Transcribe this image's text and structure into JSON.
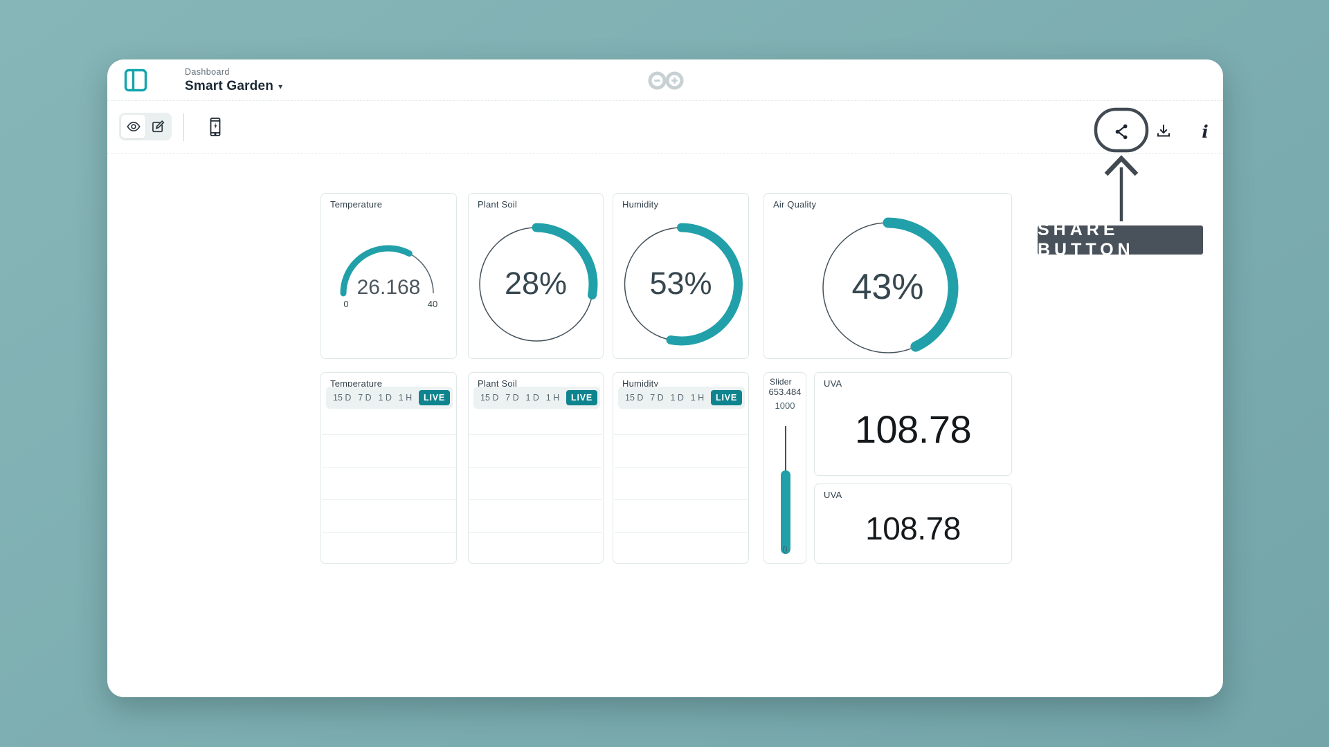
{
  "header": {
    "breadcrumb": "Dashboard",
    "title": "Smart Garden"
  },
  "annotation": {
    "label": "SHARE BUTTON"
  },
  "colors": {
    "page_background": "#7fb0b3",
    "accent_teal": "#22a0a9",
    "live_badge_teal": "#0e848e",
    "annotation_slate": "#49525a",
    "arduino_logo_gray": "#c7d0d2"
  },
  "icons": {
    "sidebar_toggle": "layout-sidebar-icon",
    "view_mode": "eye-icon",
    "edit_mode": "pencil-square-icon",
    "mobile_preview": "mobile-phone-bolt-icon",
    "share": "share-nodes-icon",
    "download": "download-tray-icon",
    "info": "italic-i-info-icon",
    "title_caret": "chevron-down-icon",
    "logo": "arduino-infinity-logo"
  },
  "widgets": {
    "temperature_gauge": {
      "title": "Temperature",
      "value": "26.168",
      "min": "0",
      "max": "40",
      "percent": 65.4
    },
    "plant_soil_ring": {
      "title": "Plant Soil",
      "value": "28%",
      "percent": 28
    },
    "humidity_ring": {
      "title": "Humidity",
      "value": "53%",
      "percent": 53
    },
    "air_quality_ring": {
      "title": "Air Quality",
      "value": "43%",
      "percent": 43
    },
    "charts": [
      {
        "title": "Temperature"
      },
      {
        "title": "Plant Soil"
      },
      {
        "title": "Humidity"
      }
    ],
    "chart_ranges": [
      "15 D",
      "7 D",
      "1 D",
      "1 H"
    ],
    "live_label": "LIVE",
    "slider": {
      "title": "Slider",
      "value": "653.484",
      "max": "1000",
      "min": "0",
      "percent": 65.3
    },
    "value_widgets": [
      {
        "title": "UVA",
        "value": "108.78"
      },
      {
        "title": "UVA",
        "value": "108.78"
      }
    ]
  }
}
